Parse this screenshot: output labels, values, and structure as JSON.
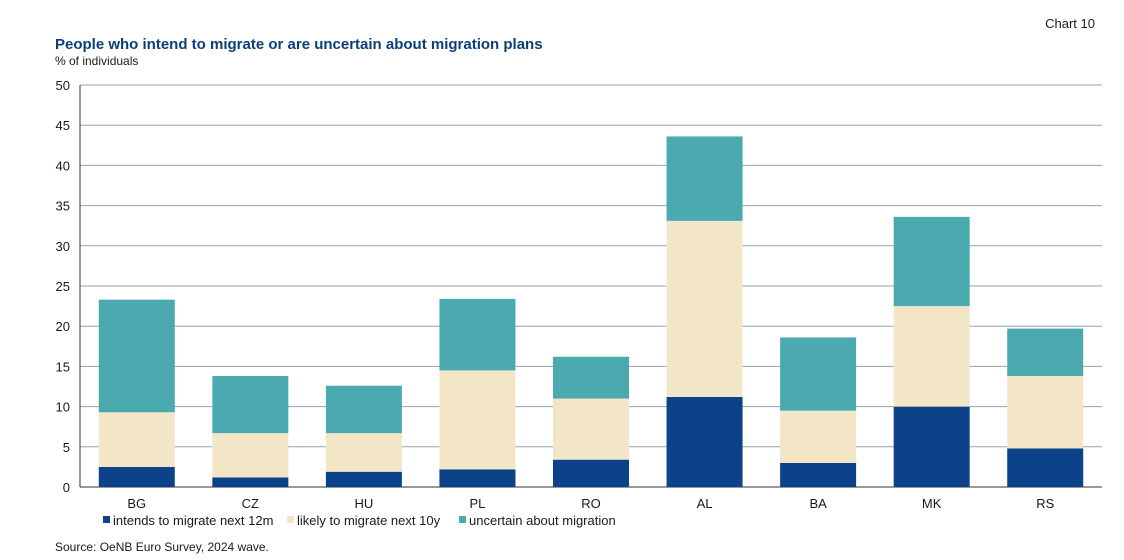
{
  "chart_label": "Chart 10",
  "chart_data": {
    "type": "bar",
    "stacked": true,
    "title": "People who intend to migrate or are uncertain about migration plans",
    "subtitle": "% of individuals",
    "source": "Source: OeNB Euro Survey, 2024 wave.",
    "categories": [
      "BG",
      "CZ",
      "HU",
      "PL",
      "RO",
      "AL",
      "BA",
      "MK",
      "RS"
    ],
    "series": [
      {
        "name": "intends to migrate next 12m",
        "color": "#0b428a",
        "values": [
          2.5,
          1.2,
          1.9,
          2.2,
          3.4,
          11.2,
          3.0,
          10.0,
          4.8
        ]
      },
      {
        "name": "likely to migrate next 10y",
        "color": "#f2e6c6",
        "values": [
          6.8,
          5.5,
          4.8,
          12.3,
          7.6,
          21.9,
          6.5,
          12.5,
          9.0
        ]
      },
      {
        "name": "uncertain about migration",
        "color": "#4ba9b0",
        "values": [
          14.0,
          7.1,
          5.9,
          8.9,
          5.2,
          10.5,
          9.1,
          11.1,
          5.9
        ]
      }
    ],
    "yticks": [
      "0",
      "5",
      "10",
      "15",
      "20",
      "25",
      "30",
      "35",
      "40",
      "45",
      "50"
    ],
    "ylim": [
      0,
      50
    ],
    "grid": true,
    "legend_position": "bottom-left"
  }
}
